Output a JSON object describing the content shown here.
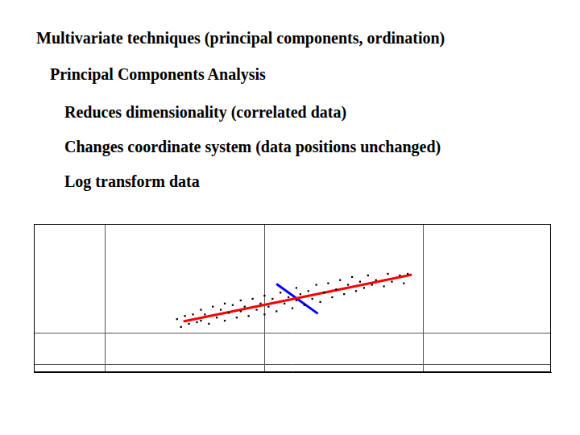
{
  "slide": {
    "title": "Multivariate techniques (principal components, ordination)",
    "subtitle": "Principal Components Analysis",
    "bullets": [
      "Reduces dimensionality (correlated data)",
      "Changes coordinate system (data positions unchanged)",
      "Log transform data"
    ]
  },
  "chart_data": {
    "type": "scatter",
    "xlim": [
      -2.9,
      3.6
    ],
    "xticks": [
      -2,
      0,
      2
    ],
    "ylim": [
      -1.25,
      3.5
    ],
    "yticks": [
      -1,
      0
    ],
    "grid": true,
    "tick_labels": false,
    "series": [
      {
        "type": "scatter",
        "color": "#000000",
        "marker": "square",
        "x": [
          -1.1,
          -1.05,
          -1.0,
          -0.95,
          -0.9,
          -0.85,
          -0.8,
          -0.8,
          -0.75,
          -0.7,
          -0.65,
          -0.6,
          -0.55,
          -0.5,
          -0.5,
          -0.45,
          -0.4,
          -0.35,
          -0.3,
          -0.3,
          -0.25,
          -0.2,
          -0.15,
          -0.1,
          -0.05,
          0,
          0,
          0.05,
          0.1,
          0.15,
          0.2,
          0.25,
          0.3,
          0.35,
          0.4,
          0.4,
          0.45,
          0.5,
          0.55,
          0.6,
          0.65,
          0.7,
          0.75,
          0.8,
          0.85,
          0.9,
          0.95,
          1.0,
          1.05,
          1.1,
          1.15,
          1.2,
          1.25,
          1.3,
          1.35,
          1.4,
          1.5,
          1.55,
          1.6,
          1.7,
          1.75,
          1.8
        ],
        "y": [
          0.45,
          0.2,
          0.55,
          0.3,
          0.6,
          0.35,
          0.75,
          0.4,
          0.6,
          0.3,
          0.85,
          0.5,
          0.75,
          0.4,
          0.95,
          0.65,
          0.9,
          0.5,
          1.05,
          0.7,
          0.85,
          0.55,
          1.1,
          0.75,
          0.95,
          0.6,
          1.2,
          0.85,
          1.1,
          0.7,
          1.3,
          0.95,
          1.15,
          0.8,
          1.45,
          1.05,
          1.25,
          0.9,
          1.35,
          1.1,
          1.55,
          1.0,
          1.3,
          1.6,
          1.15,
          1.4,
          1.7,
          1.25,
          1.55,
          1.8,
          1.35,
          1.65,
          1.45,
          1.85,
          1.55,
          1.7,
          1.5,
          1.9,
          1.65,
          1.85,
          1.6,
          1.9
        ]
      },
      {
        "type": "line",
        "color": "#ff0000",
        "line_style": "solid",
        "x": [
          -1.02,
          1.85
        ],
        "y": [
          0.375,
          1.875
        ]
      },
      {
        "type": "line",
        "color": "#0000ff",
        "line_style": "solid",
        "x": [
          0.15,
          0.67
        ],
        "y": [
          1.575,
          0.625
        ]
      }
    ]
  }
}
